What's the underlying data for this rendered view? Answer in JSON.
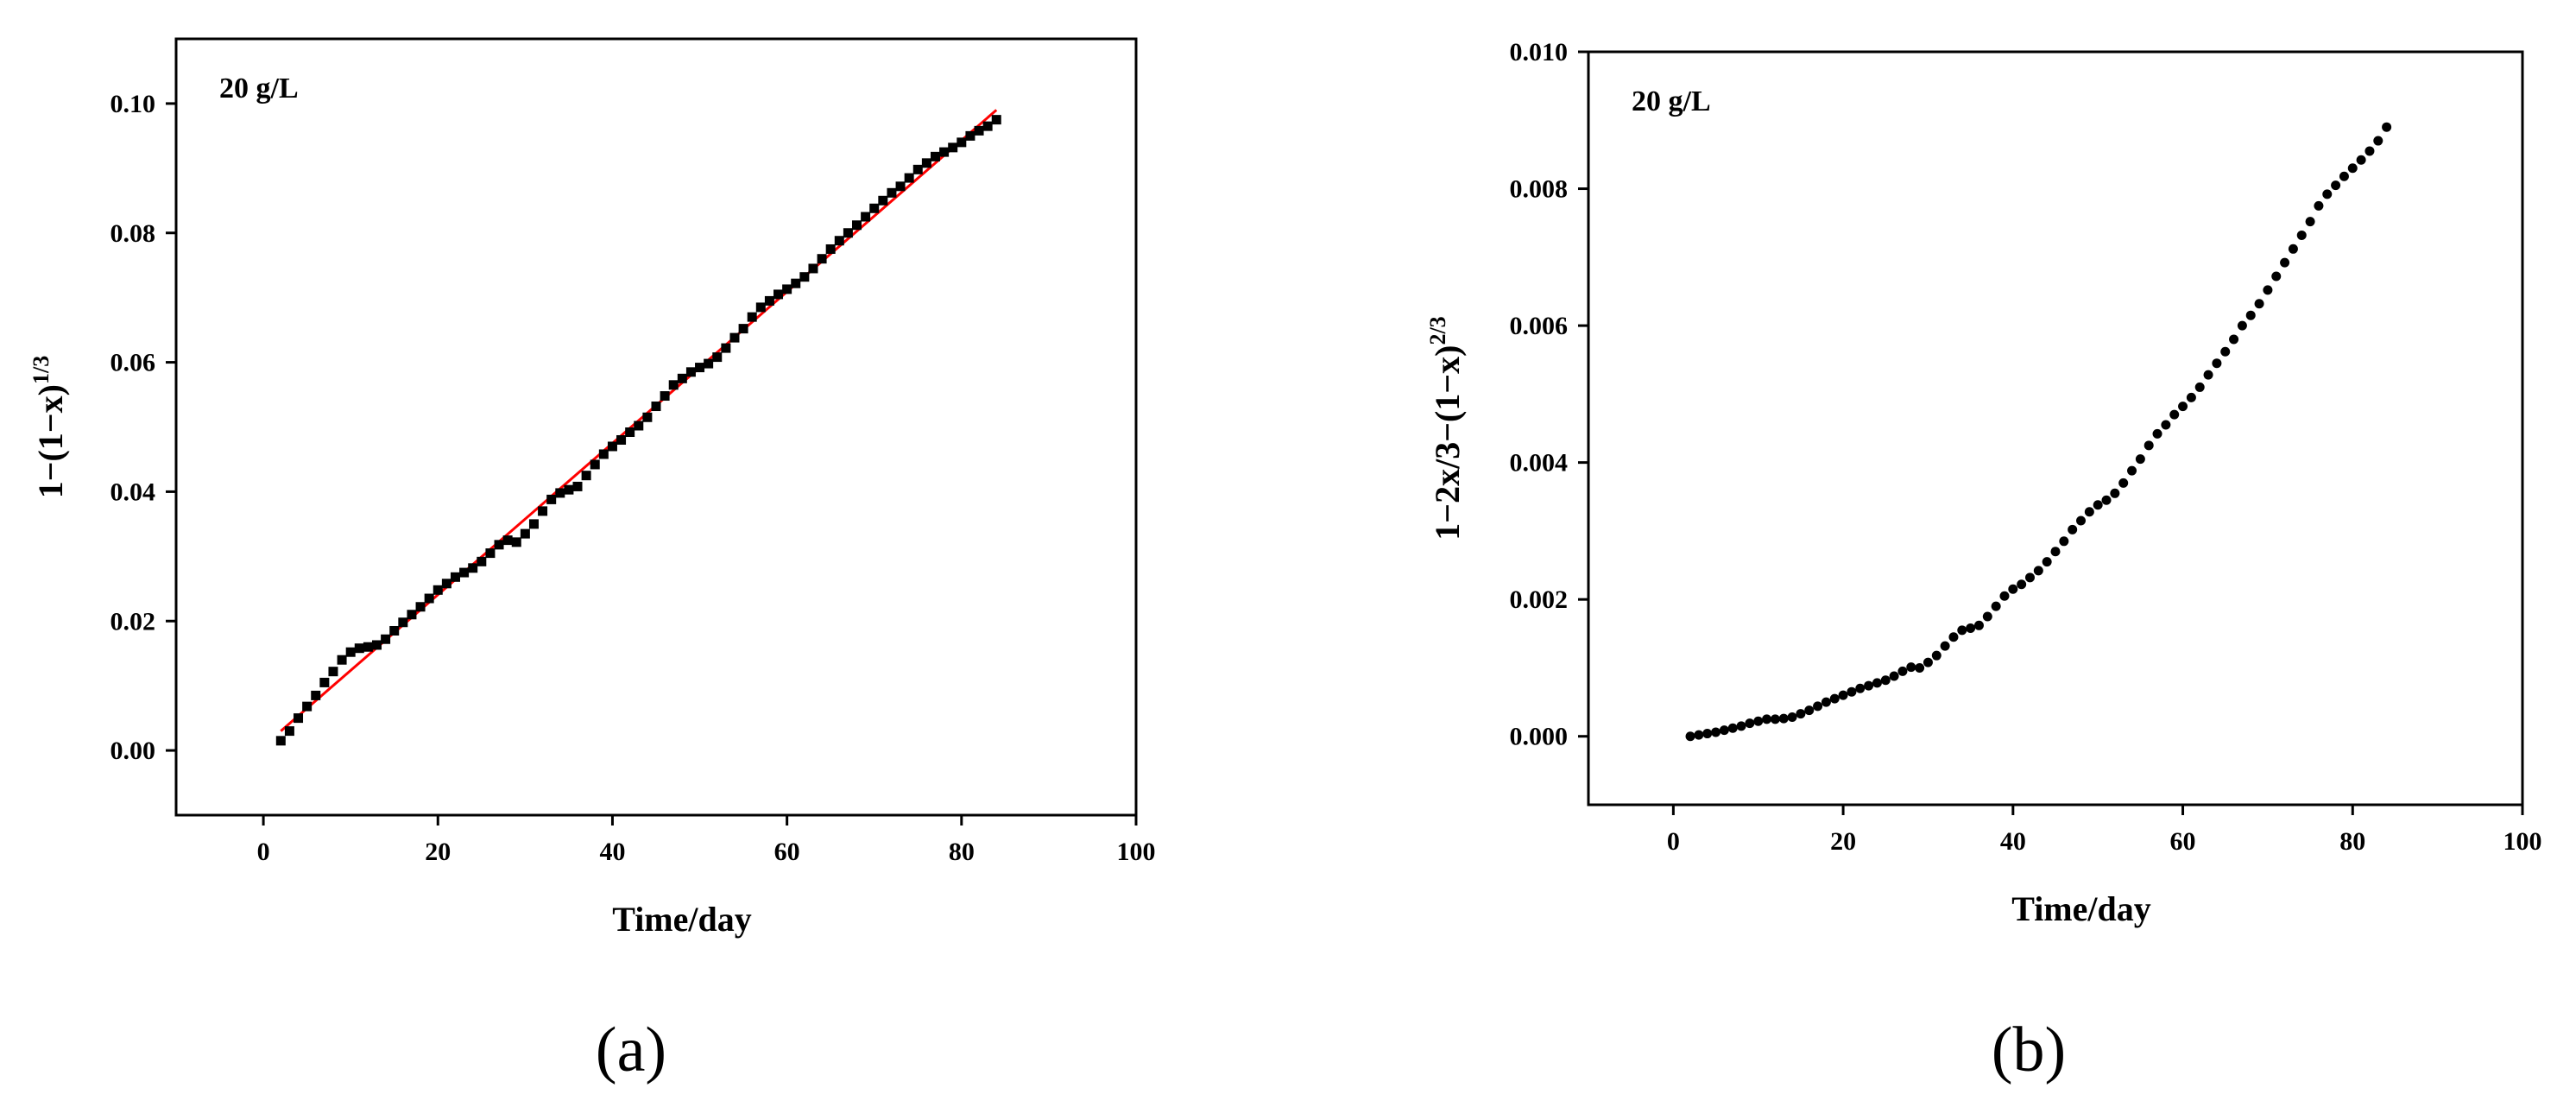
{
  "chart_data": [
    {
      "type": "scatter",
      "panel_label": "(a)",
      "annotation": "20 g/L",
      "xlabel": "Time/day",
      "ylabel_main": "1−(1−x)",
      "ylabel_sup": "1/3",
      "xlim": [
        -10,
        100
      ],
      "ylim": [
        -0.01,
        0.11
      ],
      "xticks": [
        0,
        20,
        40,
        60,
        80,
        100
      ],
      "yticks": [
        0.0,
        0.02,
        0.04,
        0.06,
        0.08,
        0.1
      ],
      "ytick_labels": [
        "0.00",
        "0.02",
        "0.04",
        "0.06",
        "0.08",
        "0.10"
      ],
      "grid": false,
      "marker": "square",
      "marker_color": "#000000",
      "fit_line": {
        "x": [
          2,
          84
        ],
        "y": [
          0.003,
          0.099
        ],
        "color": "#ff0000"
      },
      "points": [
        [
          2,
          0.0015
        ],
        [
          3,
          0.003
        ],
        [
          4,
          0.005
        ],
        [
          5,
          0.0068
        ],
        [
          6,
          0.0085
        ],
        [
          7,
          0.0105
        ],
        [
          8,
          0.0122
        ],
        [
          9,
          0.014
        ],
        [
          10,
          0.0152
        ],
        [
          11,
          0.0158
        ],
        [
          12,
          0.016
        ],
        [
          13,
          0.0163
        ],
        [
          14,
          0.0172
        ],
        [
          15,
          0.0185
        ],
        [
          16,
          0.0198
        ],
        [
          17,
          0.021
        ],
        [
          18,
          0.0222
        ],
        [
          19,
          0.0235
        ],
        [
          20,
          0.0248
        ],
        [
          21,
          0.0258
        ],
        [
          22,
          0.0268
        ],
        [
          23,
          0.0275
        ],
        [
          24,
          0.0282
        ],
        [
          25,
          0.0292
        ],
        [
          26,
          0.0305
        ],
        [
          27,
          0.0318
        ],
        [
          28,
          0.0325
        ],
        [
          29,
          0.0322
        ],
        [
          30,
          0.0335
        ],
        [
          31,
          0.035
        ],
        [
          32,
          0.037
        ],
        [
          33,
          0.0388
        ],
        [
          34,
          0.0398
        ],
        [
          35,
          0.0403
        ],
        [
          36,
          0.0408
        ],
        [
          37,
          0.0425
        ],
        [
          38,
          0.0442
        ],
        [
          39,
          0.0458
        ],
        [
          40,
          0.047
        ],
        [
          41,
          0.048
        ],
        [
          42,
          0.0492
        ],
        [
          43,
          0.0502
        ],
        [
          44,
          0.0515
        ],
        [
          45,
          0.0532
        ],
        [
          46,
          0.0548
        ],
        [
          47,
          0.0565
        ],
        [
          48,
          0.0575
        ],
        [
          49,
          0.0585
        ],
        [
          50,
          0.0592
        ],
        [
          51,
          0.0598
        ],
        [
          52,
          0.0608
        ],
        [
          53,
          0.0622
        ],
        [
          54,
          0.0638
        ],
        [
          55,
          0.0652
        ],
        [
          56,
          0.067
        ],
        [
          57,
          0.0685
        ],
        [
          58,
          0.0695
        ],
        [
          59,
          0.0705
        ],
        [
          60,
          0.0713
        ],
        [
          61,
          0.0722
        ],
        [
          62,
          0.0732
        ],
        [
          63,
          0.0745
        ],
        [
          64,
          0.076
        ],
        [
          65,
          0.0775
        ],
        [
          66,
          0.0788
        ],
        [
          67,
          0.08
        ],
        [
          68,
          0.0812
        ],
        [
          69,
          0.0825
        ],
        [
          70,
          0.0838
        ],
        [
          71,
          0.085
        ],
        [
          72,
          0.0862
        ],
        [
          73,
          0.0872
        ],
        [
          74,
          0.0885
        ],
        [
          75,
          0.0898
        ],
        [
          76,
          0.0908
        ],
        [
          77,
          0.0918
        ],
        [
          78,
          0.0925
        ],
        [
          79,
          0.0932
        ],
        [
          80,
          0.094
        ],
        [
          81,
          0.095
        ],
        [
          82,
          0.0958
        ],
        [
          83,
          0.0965
        ],
        [
          84,
          0.0975
        ]
      ]
    },
    {
      "type": "scatter",
      "panel_label": "(b)",
      "annotation": "20 g/L",
      "xlabel": "Time/day",
      "ylabel_main": "1−2x/3−(1−x)",
      "ylabel_sup": "2/3",
      "xlim": [
        -10,
        100
      ],
      "ylim": [
        -0.001,
        0.01
      ],
      "xticks": [
        0,
        20,
        40,
        60,
        80,
        100
      ],
      "yticks": [
        0.0,
        0.002,
        0.004,
        0.006,
        0.008,
        0.01
      ],
      "ytick_labels": [
        "0.000",
        "0.002",
        "0.004",
        "0.006",
        "0.008",
        "0.010"
      ],
      "grid": false,
      "marker": "circle",
      "marker_color": "#000000",
      "points": [
        [
          2,
          0.0
        ],
        [
          3,
          2e-05
        ],
        [
          4,
          4e-05
        ],
        [
          5,
          6e-05
        ],
        [
          6,
          9e-05
        ],
        [
          7,
          0.00012
        ],
        [
          8,
          0.00015
        ],
        [
          9,
          0.00019
        ],
        [
          10,
          0.00022
        ],
        [
          11,
          0.00025
        ],
        [
          12,
          0.00025
        ],
        [
          13,
          0.00026
        ],
        [
          14,
          0.00028
        ],
        [
          15,
          0.00033
        ],
        [
          16,
          0.00038
        ],
        [
          17,
          0.00044
        ],
        [
          18,
          0.0005
        ],
        [
          19,
          0.00055
        ],
        [
          20,
          0.0006
        ],
        [
          21,
          0.00065
        ],
        [
          22,
          0.0007
        ],
        [
          23,
          0.00074
        ],
        [
          24,
          0.00078
        ],
        [
          25,
          0.00082
        ],
        [
          26,
          0.00088
        ],
        [
          27,
          0.00095
        ],
        [
          28,
          0.00101
        ],
        [
          29,
          0.001
        ],
        [
          30,
          0.00108
        ],
        [
          31,
          0.00118
        ],
        [
          32,
          0.00132
        ],
        [
          33,
          0.00145
        ],
        [
          34,
          0.00155
        ],
        [
          35,
          0.00158
        ],
        [
          36,
          0.00162
        ],
        [
          37,
          0.00175
        ],
        [
          38,
          0.0019
        ],
        [
          39,
          0.00205
        ],
        [
          40,
          0.00215
        ],
        [
          41,
          0.00222
        ],
        [
          42,
          0.00232
        ],
        [
          43,
          0.00242
        ],
        [
          44,
          0.00255
        ],
        [
          45,
          0.0027
        ],
        [
          46,
          0.00285
        ],
        [
          47,
          0.00302
        ],
        [
          48,
          0.00315
        ],
        [
          49,
          0.00328
        ],
        [
          50,
          0.00338
        ],
        [
          51,
          0.00345
        ],
        [
          52,
          0.00355
        ],
        [
          53,
          0.0037
        ],
        [
          54,
          0.00388
        ],
        [
          55,
          0.00405
        ],
        [
          56,
          0.00425
        ],
        [
          57,
          0.00442
        ],
        [
          58,
          0.00455
        ],
        [
          59,
          0.0047
        ],
        [
          60,
          0.00482
        ],
        [
          61,
          0.00495
        ],
        [
          62,
          0.0051
        ],
        [
          63,
          0.00528
        ],
        [
          64,
          0.00545
        ],
        [
          65,
          0.00562
        ],
        [
          66,
          0.0058
        ],
        [
          67,
          0.006
        ],
        [
          68,
          0.00615
        ],
        [
          69,
          0.00632
        ],
        [
          70,
          0.00652
        ],
        [
          71,
          0.00672
        ],
        [
          72,
          0.00692
        ],
        [
          73,
          0.00712
        ],
        [
          74,
          0.00732
        ],
        [
          75,
          0.00752
        ],
        [
          76,
          0.00775
        ],
        [
          77,
          0.00792
        ],
        [
          78,
          0.00805
        ],
        [
          79,
          0.00818
        ],
        [
          80,
          0.0083
        ],
        [
          81,
          0.00842
        ],
        [
          82,
          0.00855
        ],
        [
          83,
          0.0087
        ],
        [
          84,
          0.0089
        ]
      ]
    }
  ]
}
